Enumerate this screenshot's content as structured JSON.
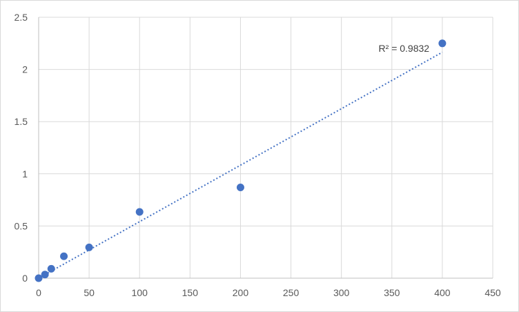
{
  "chart_data": {
    "type": "scatter",
    "title": "",
    "xlabel": "",
    "ylabel": "",
    "xlim": [
      0,
      450
    ],
    "ylim": [
      0,
      2.5
    ],
    "x_ticks": [
      0,
      50,
      100,
      150,
      200,
      250,
      300,
      350,
      400,
      450
    ],
    "y_ticks": [
      0,
      0.5,
      1,
      1.5,
      2,
      2.5
    ],
    "x_tick_labels": [
      "0",
      "50",
      "100",
      "150",
      "200",
      "250",
      "300",
      "350",
      "400",
      "450"
    ],
    "y_tick_labels": [
      "0",
      "0.5",
      "1",
      "1.5",
      "2",
      "2.5"
    ],
    "grid": {
      "vertical": true,
      "horizontal": true
    },
    "legend": "none",
    "series": [
      {
        "x": [
          0,
          6.25,
          12.5,
          25,
          50,
          100,
          200,
          400
        ],
        "y": [
          0.0,
          0.035,
          0.09,
          0.21,
          0.295,
          0.635,
          0.87,
          2.25
        ]
      }
    ],
    "trendline": {
      "type": "linear",
      "x_range": [
        0,
        400
      ],
      "y_at_start": 0.0,
      "y_at_end": 2.165,
      "style": "dotted"
    },
    "annotations": [
      {
        "text": "R² = 0.9832",
        "x": 362,
        "y": 2.17
      }
    ],
    "colors": {
      "points": "#4472c4",
      "trendline": "#4472c4",
      "grid": "#d9d9d9",
      "tick_text": "#595959"
    }
  }
}
